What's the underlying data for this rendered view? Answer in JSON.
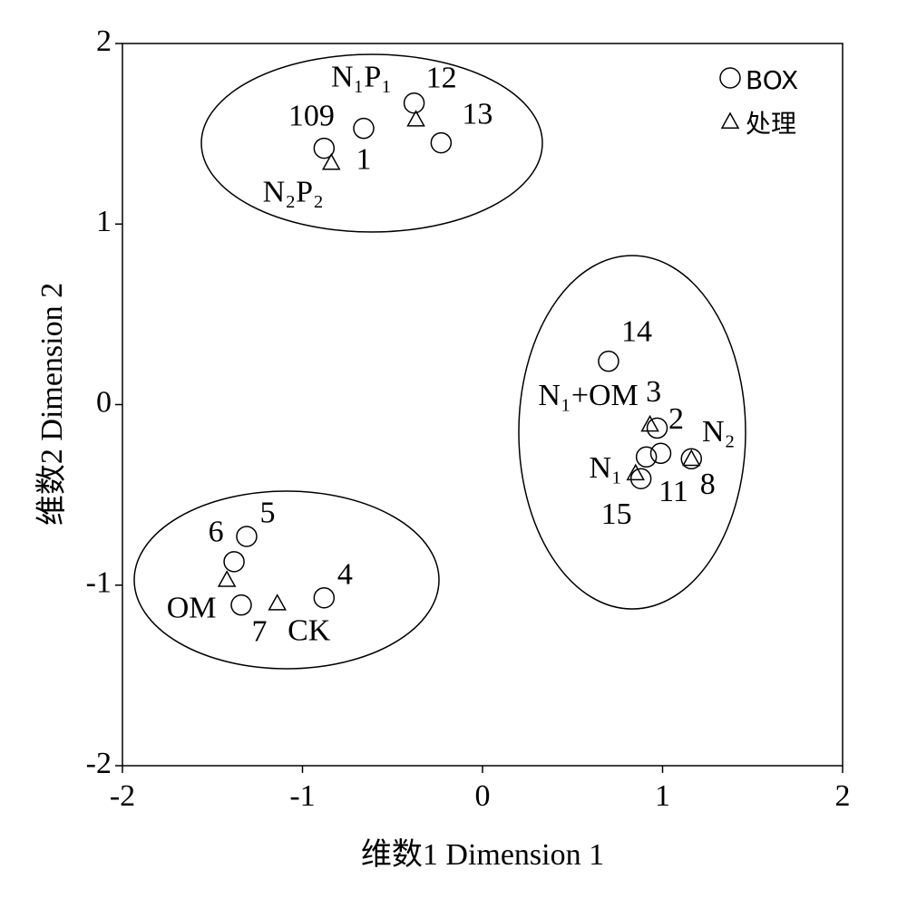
{
  "chart_data": {
    "type": "scatter",
    "xlabel": "维数1 Dimension 1",
    "ylabel": "维数2 Dimension 2",
    "xlim": [
      -2,
      2
    ],
    "ylim": [
      -2,
      2
    ],
    "xticks": [
      -2,
      -1,
      0,
      1,
      2
    ],
    "yticks": [
      -2,
      -1,
      0,
      1,
      2
    ],
    "legend": "upper right",
    "series": [
      {
        "name": "BOX",
        "marker": "circle",
        "x": [
          -0.88,
          -0.66,
          -0.38,
          -0.23,
          0.7,
          0.97,
          0.91,
          0.99,
          0.88,
          1.16,
          -1.31,
          -1.38,
          -1.34,
          -0.88
        ],
        "values": [
          1.42,
          1.53,
          1.67,
          1.45,
          0.24,
          -0.13,
          -0.29,
          -0.27,
          -0.41,
          -0.3,
          -0.73,
          -0.87,
          -1.11,
          -1.07
        ],
        "labels": [
          "109",
          "1",
          "12",
          "13",
          "14",
          "2",
          "3",
          "11",
          "15",
          "8",
          "5",
          "6",
          "7",
          "4"
        ]
      },
      {
        "name": "处理",
        "marker": "triangle",
        "x": [
          -0.37,
          -0.84,
          0.93,
          1.16,
          0.85,
          -1.42,
          -1.14
        ],
        "values": [
          1.58,
          1.34,
          -0.11,
          -0.3,
          -0.38,
          -0.97,
          -1.1
        ],
        "labels": [
          "N₁P₁",
          "N₂P₂",
          "N₁+OM",
          "N₂",
          "N₁",
          "OM",
          "CK"
        ]
      }
    ]
  }
}
